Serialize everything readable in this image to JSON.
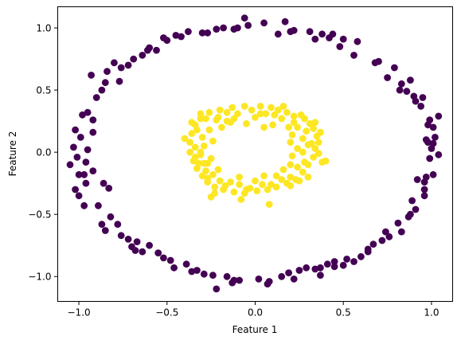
{
  "chart_data": {
    "type": "scatter",
    "title": "",
    "xlabel": "Feature 1",
    "ylabel": "Feature 2",
    "xlim": [
      -1.12,
      1.12
    ],
    "ylim": [
      -1.2,
      1.17
    ],
    "xticks": [
      {
        "value": -1.0,
        "label": "−1.0"
      },
      {
        "value": -0.5,
        "label": "−0.5"
      },
      {
        "value": 0.0,
        "label": "0.0"
      },
      {
        "value": 0.5,
        "label": "0.5"
      },
      {
        "value": 1.0,
        "label": "1.0"
      }
    ],
    "yticks": [
      {
        "value": -1.0,
        "label": "−1.0"
      },
      {
        "value": -0.5,
        "label": "−0.5"
      },
      {
        "value": 0.0,
        "label": "0.0"
      },
      {
        "value": 0.5,
        "label": "0.5"
      },
      {
        "value": 1.0,
        "label": "1.0"
      }
    ],
    "grid": false,
    "legend": false,
    "series": [
      {
        "color": "#440154",
        "points": [
          [
            1.04,
            -0.02
          ],
          [
            1.01,
            0.07
          ],
          [
            1.04,
            0.29
          ],
          [
            0.95,
            0.44
          ],
          [
            0.79,
            0.68
          ],
          [
            0.88,
            0.58
          ],
          [
            0.7,
            0.73
          ],
          [
            0.58,
            0.89
          ],
          [
            0.44,
            0.95
          ],
          [
            0.34,
            0.91
          ],
          [
            0.2,
            0.97
          ],
          [
            0.05,
            1.04
          ],
          [
            -0.06,
            1.08
          ],
          [
            -0.22,
            0.99
          ],
          [
            -0.38,
            0.97
          ],
          [
            -0.52,
            0.92
          ],
          [
            -0.61,
            0.82
          ],
          [
            -0.72,
            0.7
          ],
          [
            -0.85,
            0.56
          ],
          [
            -0.9,
            0.44
          ],
          [
            -0.95,
            0.32
          ],
          [
            -1.02,
            0.18
          ],
          [
            -1.03,
            0.04
          ],
          [
            -1.05,
            -0.1
          ],
          [
            -1.0,
            -0.18
          ],
          [
            -1.02,
            -0.3
          ],
          [
            -0.97,
            -0.43
          ],
          [
            -0.87,
            -0.58
          ],
          [
            -0.76,
            -0.67
          ],
          [
            -0.68,
            -0.79
          ],
          [
            -0.55,
            -0.81
          ],
          [
            -0.46,
            -0.93
          ],
          [
            -0.36,
            -0.96
          ],
          [
            -0.22,
            -1.1
          ],
          [
            -0.09,
            -1.03
          ],
          [
            0.07,
            -1.06
          ],
          [
            0.22,
            -1.02
          ],
          [
            0.37,
            -0.99
          ],
          [
            0.5,
            -0.91
          ],
          [
            0.64,
            -0.8
          ],
          [
            0.76,
            -0.68
          ],
          [
            0.87,
            -0.52
          ],
          [
            0.96,
            -0.35
          ],
          [
            1.01,
            -0.18
          ],
          [
            0.86,
            0.49
          ],
          [
            0.5,
            0.91
          ],
          [
            0.17,
            1.05
          ],
          [
            0.94,
            0.37
          ],
          [
            0.98,
            0.08
          ],
          [
            0.91,
            -0.46
          ],
          [
            0.67,
            -0.74
          ],
          [
            0.37,
            -0.93
          ],
          [
            -0.77,
            0.57
          ],
          [
            -0.93,
            0.62
          ],
          [
            -0.99,
            0.12
          ],
          [
            -0.96,
            -0.25
          ],
          [
            -0.85,
            -0.63
          ],
          [
            -0.7,
            -0.76
          ],
          [
            0.45,
            -0.88
          ],
          [
            0.19,
            -0.97
          ],
          [
            -0.39,
            -0.9
          ],
          [
            -0.83,
            -0.29
          ],
          [
            -0.86,
            -0.25
          ],
          [
            0.97,
            -0.2
          ],
          [
            0.97,
            0.1
          ],
          [
            0.82,
            0.5
          ],
          [
            -0.92,
            0.26
          ],
          [
            -0.52,
            -0.85
          ],
          [
            -0.13,
            -1.05
          ],
          [
            0.29,
            -0.93
          ],
          [
            0.6,
            -0.84
          ],
          [
            0.83,
            -0.64
          ],
          [
            0.96,
            -0.24
          ],
          [
            1.01,
            0.2
          ],
          [
            0.91,
            0.41
          ],
          [
            0.48,
            0.85
          ],
          [
            0.31,
            0.97
          ],
          [
            -0.18,
            1.0
          ],
          [
            -0.42,
            0.93
          ],
          [
            -0.69,
            0.75
          ],
          [
            -0.84,
            0.65
          ],
          [
            -0.95,
            0.02
          ],
          [
            -0.89,
            -0.43
          ],
          [
            -0.64,
            -0.8
          ],
          [
            -0.24,
            -0.99
          ],
          [
            0.15,
            -1.0
          ],
          [
            0.45,
            -0.92
          ],
          [
            0.72,
            -0.71
          ],
          [
            0.99,
            -0.05
          ],
          [
            0.98,
            0.22
          ],
          [
            0.56,
            0.78
          ],
          [
            -0.3,
            0.96
          ],
          [
            -0.6,
            0.84
          ],
          [
            -0.8,
            0.72
          ],
          [
            -1.0,
            -0.35
          ],
          [
            -0.78,
            -0.58
          ],
          [
            -0.33,
            -0.95
          ],
          [
            0.08,
            -1.04
          ],
          [
            0.52,
            -0.86
          ],
          [
            0.89,
            -0.39
          ],
          [
            1.0,
            0.03
          ],
          [
            0.75,
            0.6
          ],
          [
            0.22,
            0.98
          ],
          [
            -0.1,
            1.0
          ],
          [
            -0.5,
            0.9
          ],
          [
            -0.92,
            0.16
          ],
          [
            -0.92,
            -0.15
          ],
          [
            -0.67,
            -0.72
          ],
          [
            -0.12,
            -1.03
          ],
          [
            0.34,
            -0.94
          ],
          [
            0.74,
            -0.64
          ],
          [
            0.96,
            -0.3
          ],
          [
            0.9,
            0.45
          ],
          [
            0.42,
            0.92
          ],
          [
            -0.04,
            1.02
          ],
          [
            -0.56,
            0.82
          ],
          [
            -0.87,
            0.5
          ],
          [
            -0.96,
            -0.08
          ],
          [
            -0.82,
            -0.52
          ],
          [
            -0.48,
            -0.87
          ],
          [
            0.02,
            -1.02
          ],
          [
            0.56,
            -0.88
          ],
          [
            0.88,
            -0.5
          ],
          [
            1.02,
            0.12
          ],
          [
            0.68,
            0.72
          ],
          [
            0.13,
            0.95
          ],
          [
            -0.27,
            0.96
          ],
          [
            -0.64,
            0.78
          ],
          [
            -0.98,
            0.3
          ],
          [
            -1.01,
            -0.04
          ],
          [
            -0.6,
            -0.75
          ],
          [
            -0.29,
            -0.98
          ],
          [
            0.25,
            -0.95
          ],
          [
            0.64,
            -0.78
          ],
          [
            0.92,
            -0.22
          ],
          [
            0.83,
            0.55
          ],
          [
            0.38,
            0.95
          ],
          [
            -0.12,
            0.99
          ],
          [
            -0.45,
            0.94
          ],
          [
            -0.76,
            0.68
          ],
          [
            -0.97,
            -0.18
          ],
          [
            -0.72,
            -0.7
          ],
          [
            -0.16,
            -1.0
          ],
          [
            0.41,
            -0.9
          ],
          [
            0.81,
            -0.57
          ],
          [
            0.99,
            0.26
          ]
        ]
      },
      {
        "color": "#fde725",
        "points": [
          [
            0.18,
            0.32
          ],
          [
            0.03,
            0.37
          ],
          [
            -0.13,
            0.36
          ],
          [
            -0.26,
            0.32
          ],
          [
            -0.34,
            0.22
          ],
          [
            -0.37,
            0.08
          ],
          [
            -0.35,
            -0.07
          ],
          [
            -0.3,
            -0.19
          ],
          [
            -0.23,
            -0.28
          ],
          [
            -0.12,
            -0.32
          ],
          [
            0.01,
            -0.31
          ],
          [
            0.12,
            -0.28
          ],
          [
            0.23,
            -0.22
          ],
          [
            0.3,
            -0.1
          ],
          [
            0.34,
            0.03
          ],
          [
            0.35,
            0.13
          ],
          [
            0.31,
            0.23
          ],
          [
            0.26,
            0.3
          ],
          [
            0.09,
            0.36
          ],
          [
            -0.06,
            0.37
          ],
          [
            -0.2,
            0.34
          ],
          [
            -0.31,
            0.27
          ],
          [
            -0.36,
            0.15
          ],
          [
            -0.37,
            0.0
          ],
          [
            -0.33,
            -0.13
          ],
          [
            -0.27,
            -0.24
          ],
          [
            -0.18,
            -0.3
          ],
          [
            -0.06,
            -0.33
          ],
          [
            0.07,
            -0.3
          ],
          [
            0.18,
            -0.25
          ],
          [
            0.27,
            -0.16
          ],
          [
            0.33,
            -0.04
          ],
          [
            0.36,
            0.08
          ],
          [
            0.33,
            0.19
          ],
          [
            0.22,
            0.29
          ],
          [
            0.13,
            0.34
          ],
          [
            -0.02,
            0.34
          ],
          [
            -0.16,
            0.32
          ],
          [
            -0.28,
            0.27
          ],
          [
            -0.33,
            0.18
          ],
          [
            -0.34,
            0.04
          ],
          [
            -0.32,
            -0.09
          ],
          [
            -0.27,
            -0.21
          ],
          [
            -0.17,
            -0.27
          ],
          [
            -0.03,
            -0.29
          ],
          [
            0.09,
            -0.26
          ],
          [
            0.2,
            -0.2
          ],
          [
            0.28,
            -0.08
          ],
          [
            0.3,
            0.06
          ],
          [
            0.29,
            0.17
          ],
          [
            0.22,
            0.24
          ],
          [
            0.06,
            0.31
          ],
          [
            -0.1,
            0.31
          ],
          [
            -0.22,
            0.26
          ],
          [
            -0.3,
            0.12
          ],
          [
            -0.31,
            -0.02
          ],
          [
            -0.28,
            -0.15
          ],
          [
            -0.2,
            -0.23
          ],
          [
            -0.09,
            -0.26
          ],
          [
            0.04,
            -0.26
          ],
          [
            0.15,
            -0.22
          ],
          [
            0.24,
            -0.12
          ],
          [
            0.27,
            0.0
          ],
          [
            0.27,
            0.11
          ],
          [
            0.24,
            0.2
          ],
          [
            0.15,
            0.27
          ],
          [
            0.0,
            0.28
          ],
          [
            -0.16,
            0.25
          ],
          [
            -0.26,
            0.18
          ],
          [
            -0.29,
            0.05
          ],
          [
            -0.29,
            -0.09
          ],
          [
            -0.24,
            -0.18
          ],
          [
            -0.14,
            -0.24
          ],
          [
            0.0,
            -0.23
          ],
          [
            0.12,
            -0.19
          ],
          [
            0.2,
            -0.1
          ],
          [
            0.24,
            0.03
          ],
          [
            0.21,
            0.14
          ],
          [
            0.1,
            0.22
          ],
          [
            -0.05,
            0.23
          ],
          [
            -0.19,
            0.2
          ],
          [
            -0.24,
            0.09
          ],
          [
            -0.25,
            -0.05
          ],
          [
            -0.21,
            -0.14
          ],
          [
            -0.09,
            -0.2
          ],
          [
            0.05,
            -0.19
          ],
          [
            0.16,
            -0.14
          ],
          [
            0.21,
            -0.03
          ],
          [
            0.2,
            0.08
          ],
          [
            0.05,
            0.2
          ],
          [
            0.37,
            0.16
          ],
          [
            0.38,
            -0.08
          ],
          [
            0.4,
            -0.07
          ],
          [
            0.08,
            -0.42
          ],
          [
            -0.25,
            -0.36
          ],
          [
            -0.23,
            -0.33
          ],
          [
            -0.4,
            0.11
          ],
          [
            -0.34,
            -0.04
          ],
          [
            0.16,
            0.37
          ],
          [
            0.34,
            0.24
          ],
          [
            -0.14,
            0.24
          ],
          [
            -0.21,
            0.28
          ],
          [
            0.28,
            0.27
          ],
          [
            0.3,
            -0.2
          ],
          [
            -0.08,
            -0.38
          ],
          [
            -0.05,
            -0.3
          ],
          [
            0.2,
            -0.27
          ],
          [
            0.25,
            -0.23
          ],
          [
            -0.31,
            0.31
          ],
          [
            -0.36,
            0.24
          ],
          [
            0.11,
            0.3
          ],
          [
            0.03,
            0.31
          ],
          [
            -0.27,
            -0.09
          ],
          [
            -0.31,
            0.0
          ],
          [
            0.32,
            0.07
          ],
          [
            0.36,
            -0.01
          ],
          [
            -0.12,
            0.27
          ],
          [
            0.19,
            0.2
          ]
        ]
      }
    ]
  }
}
